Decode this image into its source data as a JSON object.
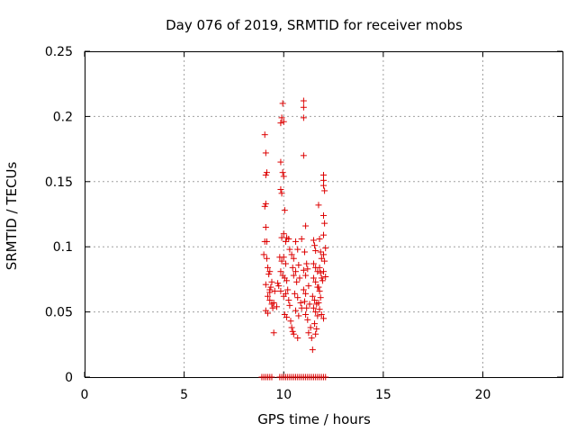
{
  "chart_data": {
    "type": "scatter",
    "title": "Day 076 of 2019, SRMTID for receiver mobs",
    "xlabel": "GPS time / hours",
    "ylabel": "SRMTID / TECUs",
    "xlim": [
      0,
      24
    ],
    "ylim": [
      0,
      0.25
    ],
    "xticks": [
      0,
      5,
      10,
      15,
      20
    ],
    "yticks": [
      0,
      0.05,
      0.1,
      0.15,
      0.2,
      0.25
    ],
    "xtick_labels": [
      "0",
      "5",
      "10",
      "15",
      "20"
    ],
    "ytick_labels": [
      "0",
      "0.05",
      "0.1",
      "0.15",
      "0.2",
      "0.25"
    ],
    "grid": true,
    "marker": "+",
    "color": "#dd0000",
    "series": [
      {
        "name": "mobs",
        "points": [
          [
            9.05,
            0.186
          ],
          [
            9.1,
            0.172
          ],
          [
            9.1,
            0.155
          ],
          [
            9.15,
            0.157
          ],
          [
            9.05,
            0.131
          ],
          [
            9.1,
            0.133
          ],
          [
            9.1,
            0.115
          ],
          [
            9.15,
            0.104
          ],
          [
            9.05,
            0.104
          ],
          [
            9.0,
            0.094
          ],
          [
            9.15,
            0.091
          ],
          [
            9.2,
            0.084
          ],
          [
            9.25,
            0.079
          ],
          [
            9.3,
            0.081
          ],
          [
            9.1,
            0.071
          ],
          [
            9.3,
            0.067
          ],
          [
            9.35,
            0.069
          ],
          [
            9.4,
            0.073
          ],
          [
            9.2,
            0.062
          ],
          [
            9.3,
            0.059
          ],
          [
            9.4,
            0.056
          ],
          [
            9.45,
            0.053
          ],
          [
            9.5,
            0.057
          ],
          [
            9.1,
            0.051
          ],
          [
            9.2,
            0.049
          ],
          [
            9.3,
            0.065
          ],
          [
            9.55,
            0.066
          ],
          [
            9.5,
            0.034
          ],
          [
            9.85,
            0.195
          ],
          [
            9.9,
            0.199
          ],
          [
            9.95,
            0.21
          ],
          [
            10.0,
            0.196
          ],
          [
            9.85,
            0.165
          ],
          [
            9.95,
            0.157
          ],
          [
            10.0,
            0.154
          ],
          [
            9.85,
            0.144
          ],
          [
            9.9,
            0.141
          ],
          [
            10.05,
            0.128
          ],
          [
            9.9,
            0.107
          ],
          [
            10.0,
            0.11
          ],
          [
            10.1,
            0.104
          ],
          [
            10.15,
            0.107
          ],
          [
            9.8,
            0.092
          ],
          [
            9.9,
            0.089
          ],
          [
            10.0,
            0.092
          ],
          [
            10.1,
            0.087
          ],
          [
            9.85,
            0.081
          ],
          [
            9.95,
            0.078
          ],
          [
            10.05,
            0.076
          ],
          [
            10.15,
            0.074
          ],
          [
            9.75,
            0.07
          ],
          [
            9.85,
            0.066
          ],
          [
            10.0,
            0.062
          ],
          [
            10.1,
            0.064
          ],
          [
            10.2,
            0.067
          ],
          [
            10.25,
            0.059
          ],
          [
            10.3,
            0.055
          ],
          [
            10.05,
            0.048
          ],
          [
            10.15,
            0.046
          ],
          [
            10.35,
            0.043
          ],
          [
            10.4,
            0.038
          ],
          [
            10.45,
            0.035
          ],
          [
            10.5,
            0.033
          ],
          [
            9.7,
            0.072
          ],
          [
            9.65,
            0.054
          ],
          [
            10.25,
            0.106
          ],
          [
            10.3,
            0.098
          ],
          [
            10.4,
            0.094
          ],
          [
            10.5,
            0.091
          ],
          [
            10.6,
            0.104
          ],
          [
            10.7,
            0.098
          ],
          [
            10.45,
            0.084
          ],
          [
            10.6,
            0.081
          ],
          [
            10.75,
            0.086
          ],
          [
            10.5,
            0.078
          ],
          [
            10.65,
            0.073
          ],
          [
            10.8,
            0.076
          ],
          [
            10.55,
            0.064
          ],
          [
            10.7,
            0.061
          ],
          [
            10.85,
            0.057
          ],
          [
            10.6,
            0.051
          ],
          [
            10.75,
            0.047
          ],
          [
            10.9,
            0.053
          ],
          [
            10.7,
            0.03
          ],
          [
            10.9,
            0.106
          ],
          [
            11.0,
            0.212
          ],
          [
            11.0,
            0.207
          ],
          [
            11.0,
            0.199
          ],
          [
            11.0,
            0.17
          ],
          [
            11.1,
            0.116
          ],
          [
            11.05,
            0.096
          ],
          [
            11.15,
            0.087
          ],
          [
            11.0,
            0.082
          ],
          [
            11.1,
            0.078
          ],
          [
            11.2,
            0.083
          ],
          [
            11.0,
            0.067
          ],
          [
            11.1,
            0.064
          ],
          [
            11.25,
            0.07
          ],
          [
            11.05,
            0.058
          ],
          [
            11.15,
            0.053
          ],
          [
            11.3,
            0.056
          ],
          [
            11.1,
            0.048
          ],
          [
            11.2,
            0.044
          ],
          [
            11.35,
            0.038
          ],
          [
            11.25,
            0.034
          ],
          [
            11.4,
            0.03
          ],
          [
            11.45,
            0.021
          ],
          [
            11.5,
            0.105
          ],
          [
            11.55,
            0.101
          ],
          [
            11.6,
            0.097
          ],
          [
            11.5,
            0.087
          ],
          [
            11.6,
            0.084
          ],
          [
            11.7,
            0.081
          ],
          [
            11.5,
            0.076
          ],
          [
            11.6,
            0.073
          ],
          [
            11.7,
            0.069
          ],
          [
            11.45,
            0.062
          ],
          [
            11.55,
            0.059
          ],
          [
            11.65,
            0.056
          ],
          [
            11.5,
            0.053
          ],
          [
            11.6,
            0.05
          ],
          [
            11.7,
            0.047
          ],
          [
            11.55,
            0.041
          ],
          [
            11.65,
            0.037
          ],
          [
            11.6,
            0.033
          ],
          [
            11.75,
            0.132
          ],
          [
            11.8,
            0.106
          ],
          [
            11.85,
            0.096
          ],
          [
            11.9,
            0.091
          ],
          [
            11.8,
            0.084
          ],
          [
            11.85,
            0.08
          ],
          [
            11.9,
            0.076
          ],
          [
            11.75,
            0.069
          ],
          [
            11.8,
            0.066
          ],
          [
            11.85,
            0.061
          ],
          [
            11.75,
            0.057
          ],
          [
            11.8,
            0.052
          ],
          [
            11.9,
            0.048
          ],
          [
            12.0,
            0.155
          ],
          [
            12.0,
            0.151
          ],
          [
            12.0,
            0.147
          ],
          [
            12.05,
            0.143
          ],
          [
            12.0,
            0.124
          ],
          [
            12.05,
            0.118
          ],
          [
            12.0,
            0.109
          ],
          [
            12.1,
            0.099
          ],
          [
            12.0,
            0.094
          ],
          [
            12.05,
            0.089
          ],
          [
            12.0,
            0.081
          ],
          [
            12.1,
            0.077
          ],
          [
            11.95,
            0.074
          ],
          [
            12.0,
            0.045
          ],
          [
            8.9,
            0
          ],
          [
            9.0,
            0
          ],
          [
            9.1,
            0
          ],
          [
            9.2,
            0
          ],
          [
            9.3,
            0
          ],
          [
            9.4,
            0
          ],
          [
            9.8,
            0
          ],
          [
            9.9,
            0
          ],
          [
            10.0,
            0
          ],
          [
            10.1,
            0
          ],
          [
            10.2,
            0
          ],
          [
            10.3,
            0
          ],
          [
            10.4,
            0
          ],
          [
            10.5,
            0
          ],
          [
            10.6,
            0
          ],
          [
            10.7,
            0
          ],
          [
            10.8,
            0
          ],
          [
            10.9,
            0
          ],
          [
            11.0,
            0
          ],
          [
            11.1,
            0
          ],
          [
            11.2,
            0
          ],
          [
            11.3,
            0
          ],
          [
            11.4,
            0
          ],
          [
            11.5,
            0
          ],
          [
            11.6,
            0
          ],
          [
            11.7,
            0
          ],
          [
            11.8,
            0
          ],
          [
            11.9,
            0
          ],
          [
            12.0,
            0
          ],
          [
            12.1,
            0
          ]
        ]
      }
    ]
  }
}
